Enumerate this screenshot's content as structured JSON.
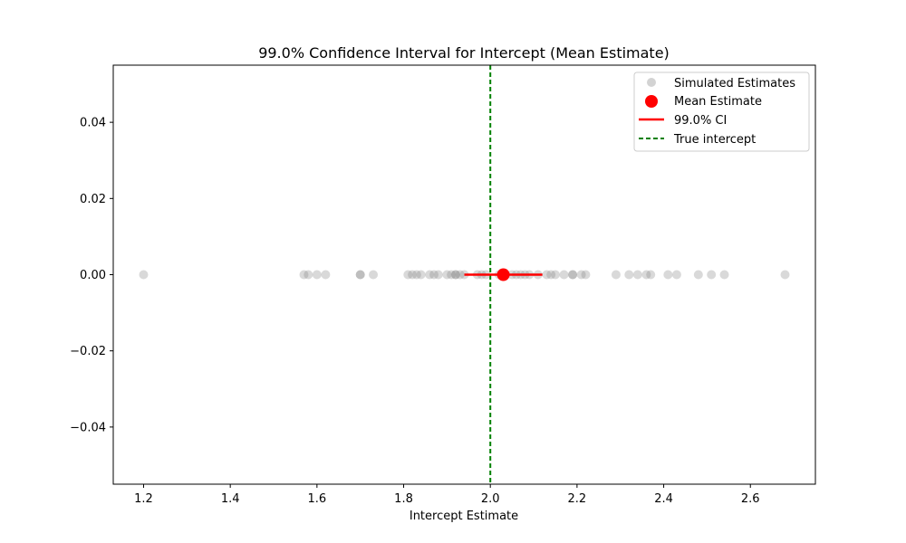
{
  "chart_data": {
    "type": "scatter",
    "title": "99.0% Confidence Interval for Intercept (Mean Estimate)",
    "xlabel": "Intercept Estimate",
    "ylabel": "",
    "xlim": [
      1.13,
      2.75
    ],
    "ylim": [
      -0.055,
      0.055
    ],
    "xticks": [
      "1.2",
      "1.4",
      "1.6",
      "1.8",
      "2.0",
      "2.2",
      "2.4",
      "2.6"
    ],
    "xtick_values": [
      1.2,
      1.4,
      1.6,
      1.8,
      2.0,
      2.2,
      2.4,
      2.6
    ],
    "yticks": [
      "0.04",
      "0.02",
      "0.00",
      "−0.02",
      "−0.04"
    ],
    "ytick_values": [
      0.04,
      0.02,
      0.0,
      -0.02,
      -0.04
    ],
    "grid": false,
    "legend_position": "top-right",
    "simulated_estimates": [
      1.2,
      1.57,
      1.58,
      1.6,
      1.62,
      1.7,
      1.7,
      1.73,
      1.81,
      1.82,
      1.83,
      1.84,
      1.86,
      1.87,
      1.88,
      1.9,
      1.91,
      1.92,
      1.92,
      1.93,
      1.94,
      1.97,
      1.98,
      1.99,
      2.02,
      2.03,
      2.05,
      2.06,
      2.07,
      2.08,
      2.09,
      2.11,
      2.13,
      2.14,
      2.15,
      2.17,
      2.19,
      2.19,
      2.21,
      2.22,
      2.29,
      2.32,
      2.34,
      2.36,
      2.37,
      2.41,
      2.43,
      2.48,
      2.51,
      2.54,
      2.68
    ],
    "mean_estimate": 2.03,
    "ci": [
      1.94,
      2.12
    ],
    "true_intercept": 2.0,
    "legend": {
      "simulated": "Simulated Estimates",
      "mean": "Mean Estimate",
      "ci": "99.0% CI",
      "true": "True intercept"
    },
    "colors": {
      "simulated": "#808080",
      "mean": "#ff0000",
      "ci": "#ff0000",
      "true": "#008000"
    }
  }
}
